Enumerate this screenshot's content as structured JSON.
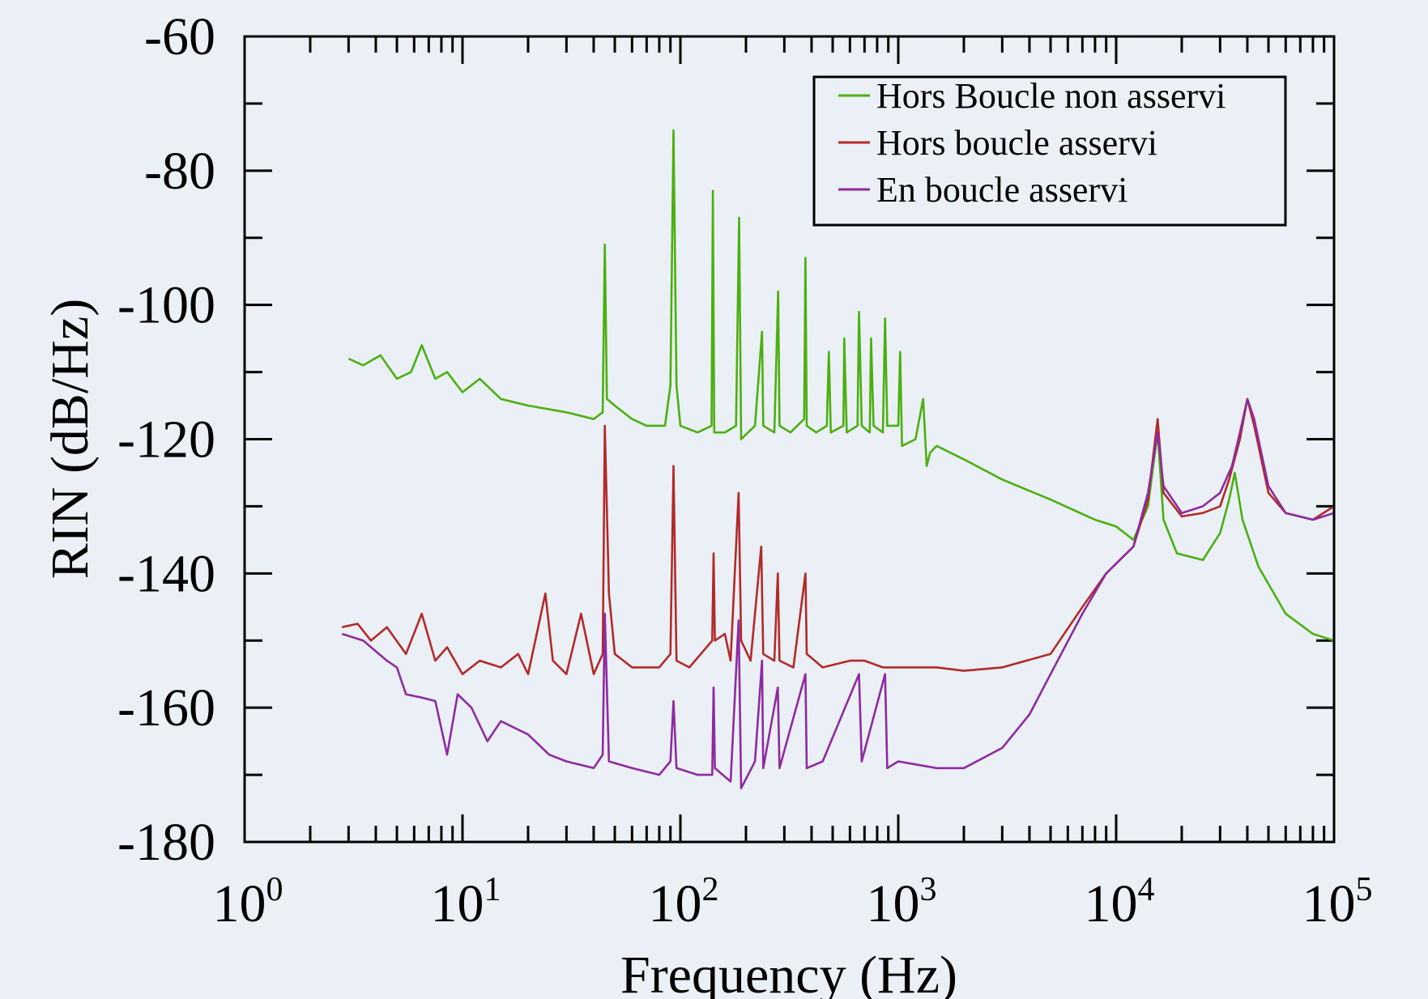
{
  "chart_data": {
    "type": "line",
    "xlabel": "Frequency (Hz)",
    "ylabel": "RIN (dB/Hz)",
    "x_scale": "log",
    "xlim": [
      1,
      100000
    ],
    "ylim": [
      -180,
      -60
    ],
    "x_ticks": [
      {
        "base": "10",
        "exp": "0"
      },
      {
        "base": "10",
        "exp": "1"
      },
      {
        "base": "10",
        "exp": "2"
      },
      {
        "base": "10",
        "exp": "3"
      },
      {
        "base": "10",
        "exp": "4"
      },
      {
        "base": "10",
        "exp": "5"
      }
    ],
    "y_ticks": [
      "-60",
      "-80",
      "-100",
      "-120",
      "-140",
      "-160",
      "-180"
    ],
    "grid": false,
    "legend_position": "top-right",
    "series": [
      {
        "name": "Hors Boucle non asservi",
        "color": "#4caf10",
        "points": [
          [
            3,
            -108
          ],
          [
            3.5,
            -109
          ],
          [
            4.2,
            -107.5
          ],
          [
            5,
            -111
          ],
          [
            5.8,
            -110
          ],
          [
            6.5,
            -106
          ],
          [
            7.5,
            -111
          ],
          [
            8.5,
            -110
          ],
          [
            10,
            -113
          ],
          [
            12,
            -111
          ],
          [
            15,
            -114
          ],
          [
            20,
            -115
          ],
          [
            30,
            -116
          ],
          [
            40,
            -117
          ],
          [
            44,
            -116
          ],
          [
            45,
            -91
          ],
          [
            46,
            -114
          ],
          [
            50,
            -115
          ],
          [
            60,
            -117
          ],
          [
            70,
            -118
          ],
          [
            85,
            -118
          ],
          [
            90,
            -112
          ],
          [
            93,
            -74
          ],
          [
            96,
            -112
          ],
          [
            100,
            -118
          ],
          [
            120,
            -119
          ],
          [
            139,
            -118
          ],
          [
            141,
            -83
          ],
          [
            143,
            -119
          ],
          [
            160,
            -119
          ],
          [
            180,
            -118
          ],
          [
            186,
            -87
          ],
          [
            190,
            -120
          ],
          [
            220,
            -118
          ],
          [
            237,
            -104
          ],
          [
            240,
            -118
          ],
          [
            270,
            -119
          ],
          [
            281,
            -98
          ],
          [
            285,
            -118
          ],
          [
            320,
            -119
          ],
          [
            370,
            -117
          ],
          [
            375,
            -93
          ],
          [
            380,
            -118
          ],
          [
            420,
            -119
          ],
          [
            470,
            -118
          ],
          [
            480,
            -107
          ],
          [
            490,
            -119
          ],
          [
            560,
            -118
          ],
          [
            565,
            -105
          ],
          [
            580,
            -119
          ],
          [
            650,
            -118
          ],
          [
            660,
            -101
          ],
          [
            680,
            -118
          ],
          [
            740,
            -119
          ],
          [
            750,
            -105
          ],
          [
            770,
            -118
          ],
          [
            850,
            -119
          ],
          [
            870,
            -102
          ],
          [
            890,
            -118
          ],
          [
            1000,
            -118
          ],
          [
            1020,
            -107
          ],
          [
            1040,
            -121
          ],
          [
            1200,
            -120
          ],
          [
            1300,
            -114
          ],
          [
            1350,
            -124
          ],
          [
            1400,
            -122
          ],
          [
            1500,
            -121
          ],
          [
            2000,
            -123
          ],
          [
            3000,
            -126
          ],
          [
            5000,
            -129
          ],
          [
            8000,
            -132
          ],
          [
            10000,
            -133
          ],
          [
            12000,
            -135
          ],
          [
            14000,
            -130
          ],
          [
            15500,
            -119
          ],
          [
            16500,
            -132
          ],
          [
            19000,
            -137
          ],
          [
            25000,
            -138
          ],
          [
            30000,
            -134
          ],
          [
            33000,
            -129
          ],
          [
            35000,
            -125
          ],
          [
            38000,
            -132
          ],
          [
            45000,
            -139
          ],
          [
            60000,
            -146
          ],
          [
            80000,
            -149
          ],
          [
            100000,
            -150
          ]
        ]
      },
      {
        "name": "Hors boucle asservi",
        "color": "#b22a2a",
        "points": [
          [
            2.8,
            -148
          ],
          [
            3.3,
            -147.5
          ],
          [
            3.8,
            -150
          ],
          [
            4.5,
            -148
          ],
          [
            5.5,
            -152
          ],
          [
            6.5,
            -146
          ],
          [
            7.5,
            -153
          ],
          [
            8.5,
            -151
          ],
          [
            10,
            -155
          ],
          [
            12,
            -153
          ],
          [
            15,
            -154
          ],
          [
            18,
            -152
          ],
          [
            20,
            -155
          ],
          [
            24,
            -143
          ],
          [
            26,
            -153
          ],
          [
            30,
            -155
          ],
          [
            35,
            -146
          ],
          [
            40,
            -155
          ],
          [
            44,
            -152
          ],
          [
            45,
            -118
          ],
          [
            47,
            -143
          ],
          [
            50,
            -152
          ],
          [
            60,
            -154
          ],
          [
            80,
            -154
          ],
          [
            90,
            -152
          ],
          [
            93,
            -124
          ],
          [
            96,
            -153
          ],
          [
            110,
            -154
          ],
          [
            140,
            -150
          ],
          [
            142,
            -137
          ],
          [
            144,
            -150
          ],
          [
            160,
            -149
          ],
          [
            170,
            -153
          ],
          [
            185,
            -128
          ],
          [
            190,
            -150
          ],
          [
            210,
            -153
          ],
          [
            235,
            -136
          ],
          [
            240,
            -152
          ],
          [
            270,
            -153
          ],
          [
            280,
            -140
          ],
          [
            285,
            -153
          ],
          [
            330,
            -154
          ],
          [
            375,
            -140
          ],
          [
            380,
            -152
          ],
          [
            450,
            -154
          ],
          [
            600,
            -153
          ],
          [
            700,
            -153
          ],
          [
            850,
            -154
          ],
          [
            1000,
            -154
          ],
          [
            1500,
            -154
          ],
          [
            2000,
            -154.5
          ],
          [
            3000,
            -154
          ],
          [
            5000,
            -152
          ],
          [
            7000,
            -145
          ],
          [
            9000,
            -140
          ],
          [
            12000,
            -136
          ],
          [
            14000,
            -129
          ],
          [
            15500,
            -117
          ],
          [
            16500,
            -128
          ],
          [
            20000,
            -131.5
          ],
          [
            25000,
            -131
          ],
          [
            30000,
            -130
          ],
          [
            33000,
            -126
          ],
          [
            37000,
            -120
          ],
          [
            40000,
            -114
          ],
          [
            43000,
            -118
          ],
          [
            50000,
            -128
          ],
          [
            60000,
            -131
          ],
          [
            80000,
            -132
          ],
          [
            100000,
            -130
          ]
        ]
      },
      {
        "name": "En boucle asservi",
        "color": "#8e2aa0",
        "points": [
          [
            2.8,
            -149
          ],
          [
            3.5,
            -150
          ],
          [
            4.5,
            -153
          ],
          [
            5,
            -154
          ],
          [
            5.5,
            -158
          ],
          [
            6.5,
            -158.5
          ],
          [
            7.5,
            -159
          ],
          [
            8.5,
            -167
          ],
          [
            9.5,
            -158
          ],
          [
            11,
            -160
          ],
          [
            13,
            -165
          ],
          [
            15,
            -162
          ],
          [
            20,
            -164
          ],
          [
            25,
            -167
          ],
          [
            30,
            -168
          ],
          [
            40,
            -169
          ],
          [
            44,
            -167
          ],
          [
            45,
            -146
          ],
          [
            47,
            -168
          ],
          [
            60,
            -169
          ],
          [
            80,
            -170
          ],
          [
            90,
            -168
          ],
          [
            93,
            -159
          ],
          [
            96,
            -169
          ],
          [
            120,
            -170
          ],
          [
            140,
            -170
          ],
          [
            142,
            -157
          ],
          [
            144,
            -169
          ],
          [
            170,
            -171
          ],
          [
            185,
            -147
          ],
          [
            190,
            -172
          ],
          [
            220,
            -168
          ],
          [
            237,
            -153
          ],
          [
            240,
            -169
          ],
          [
            280,
            -157
          ],
          [
            285,
            -169
          ],
          [
            375,
            -155
          ],
          [
            380,
            -169
          ],
          [
            450,
            -168
          ],
          [
            660,
            -155
          ],
          [
            680,
            -168
          ],
          [
            870,
            -155
          ],
          [
            890,
            -169
          ],
          [
            1000,
            -168
          ],
          [
            1500,
            -169
          ],
          [
            2000,
            -169
          ],
          [
            3000,
            -166
          ],
          [
            4000,
            -161
          ],
          [
            5000,
            -155
          ],
          [
            7000,
            -146
          ],
          [
            9000,
            -140
          ],
          [
            12000,
            -136
          ],
          [
            14000,
            -128
          ],
          [
            15500,
            -119
          ],
          [
            16500,
            -127
          ],
          [
            20000,
            -131
          ],
          [
            25000,
            -130
          ],
          [
            30000,
            -128
          ],
          [
            34000,
            -124
          ],
          [
            37000,
            -119
          ],
          [
            40000,
            -114
          ],
          [
            43000,
            -117
          ],
          [
            50000,
            -127
          ],
          [
            60000,
            -131
          ],
          [
            80000,
            -132
          ],
          [
            100000,
            -131
          ]
        ]
      }
    ]
  }
}
